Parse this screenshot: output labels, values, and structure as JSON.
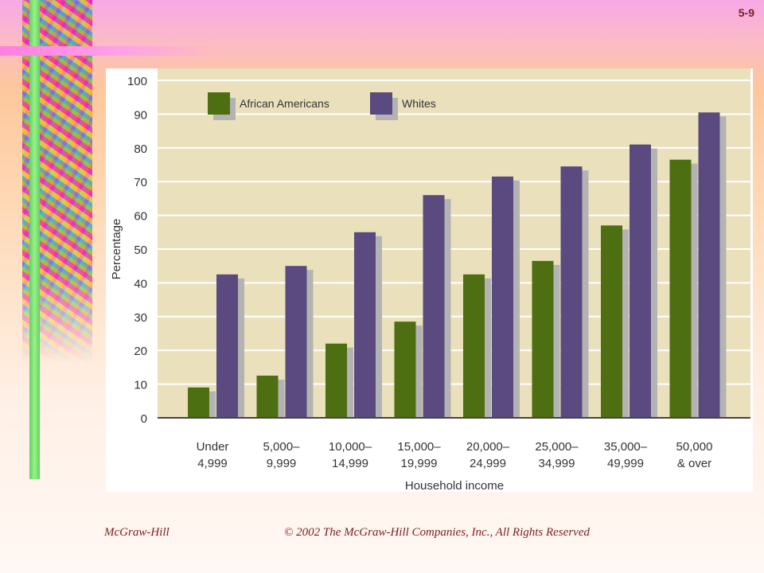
{
  "slide_number": "5-9",
  "footer": {
    "publisher": "McGraw-Hill",
    "copyright": "© 2002 The McGraw-Hill Companies, Inc., All Rights Reserved"
  },
  "chart_data": {
    "type": "bar",
    "title": "",
    "xlabel": "Household income",
    "ylabel": "Percentage",
    "ylim": [
      0,
      100
    ],
    "yticks": [
      0,
      10,
      20,
      30,
      40,
      50,
      60,
      70,
      80,
      90,
      100
    ],
    "grid": true,
    "legend_position": "top-left",
    "categories": [
      [
        "Under",
        "4,999"
      ],
      [
        "5,000–",
        "9,999"
      ],
      [
        "10,000–",
        "14,999"
      ],
      [
        "15,000–",
        "19,999"
      ],
      [
        "20,000–",
        "24,999"
      ],
      [
        "25,000–",
        "34,999"
      ],
      [
        "35,000–",
        "49,999"
      ],
      [
        "50,000",
        "& over"
      ]
    ],
    "series": [
      {
        "name": "African Americans",
        "color": "#4e6e12",
        "values": [
          9,
          12.5,
          22,
          28.5,
          42.5,
          46.5,
          57,
          76.5
        ]
      },
      {
        "name": "Whites",
        "color": "#5b4a7f",
        "values": [
          42.5,
          45,
          55,
          66,
          71.5,
          74.5,
          81,
          90.5
        ]
      }
    ],
    "colors": {
      "plot_background": "#ebe0bc",
      "bar_shadow": "#b3b3b3",
      "grid": "#ffffff"
    }
  }
}
